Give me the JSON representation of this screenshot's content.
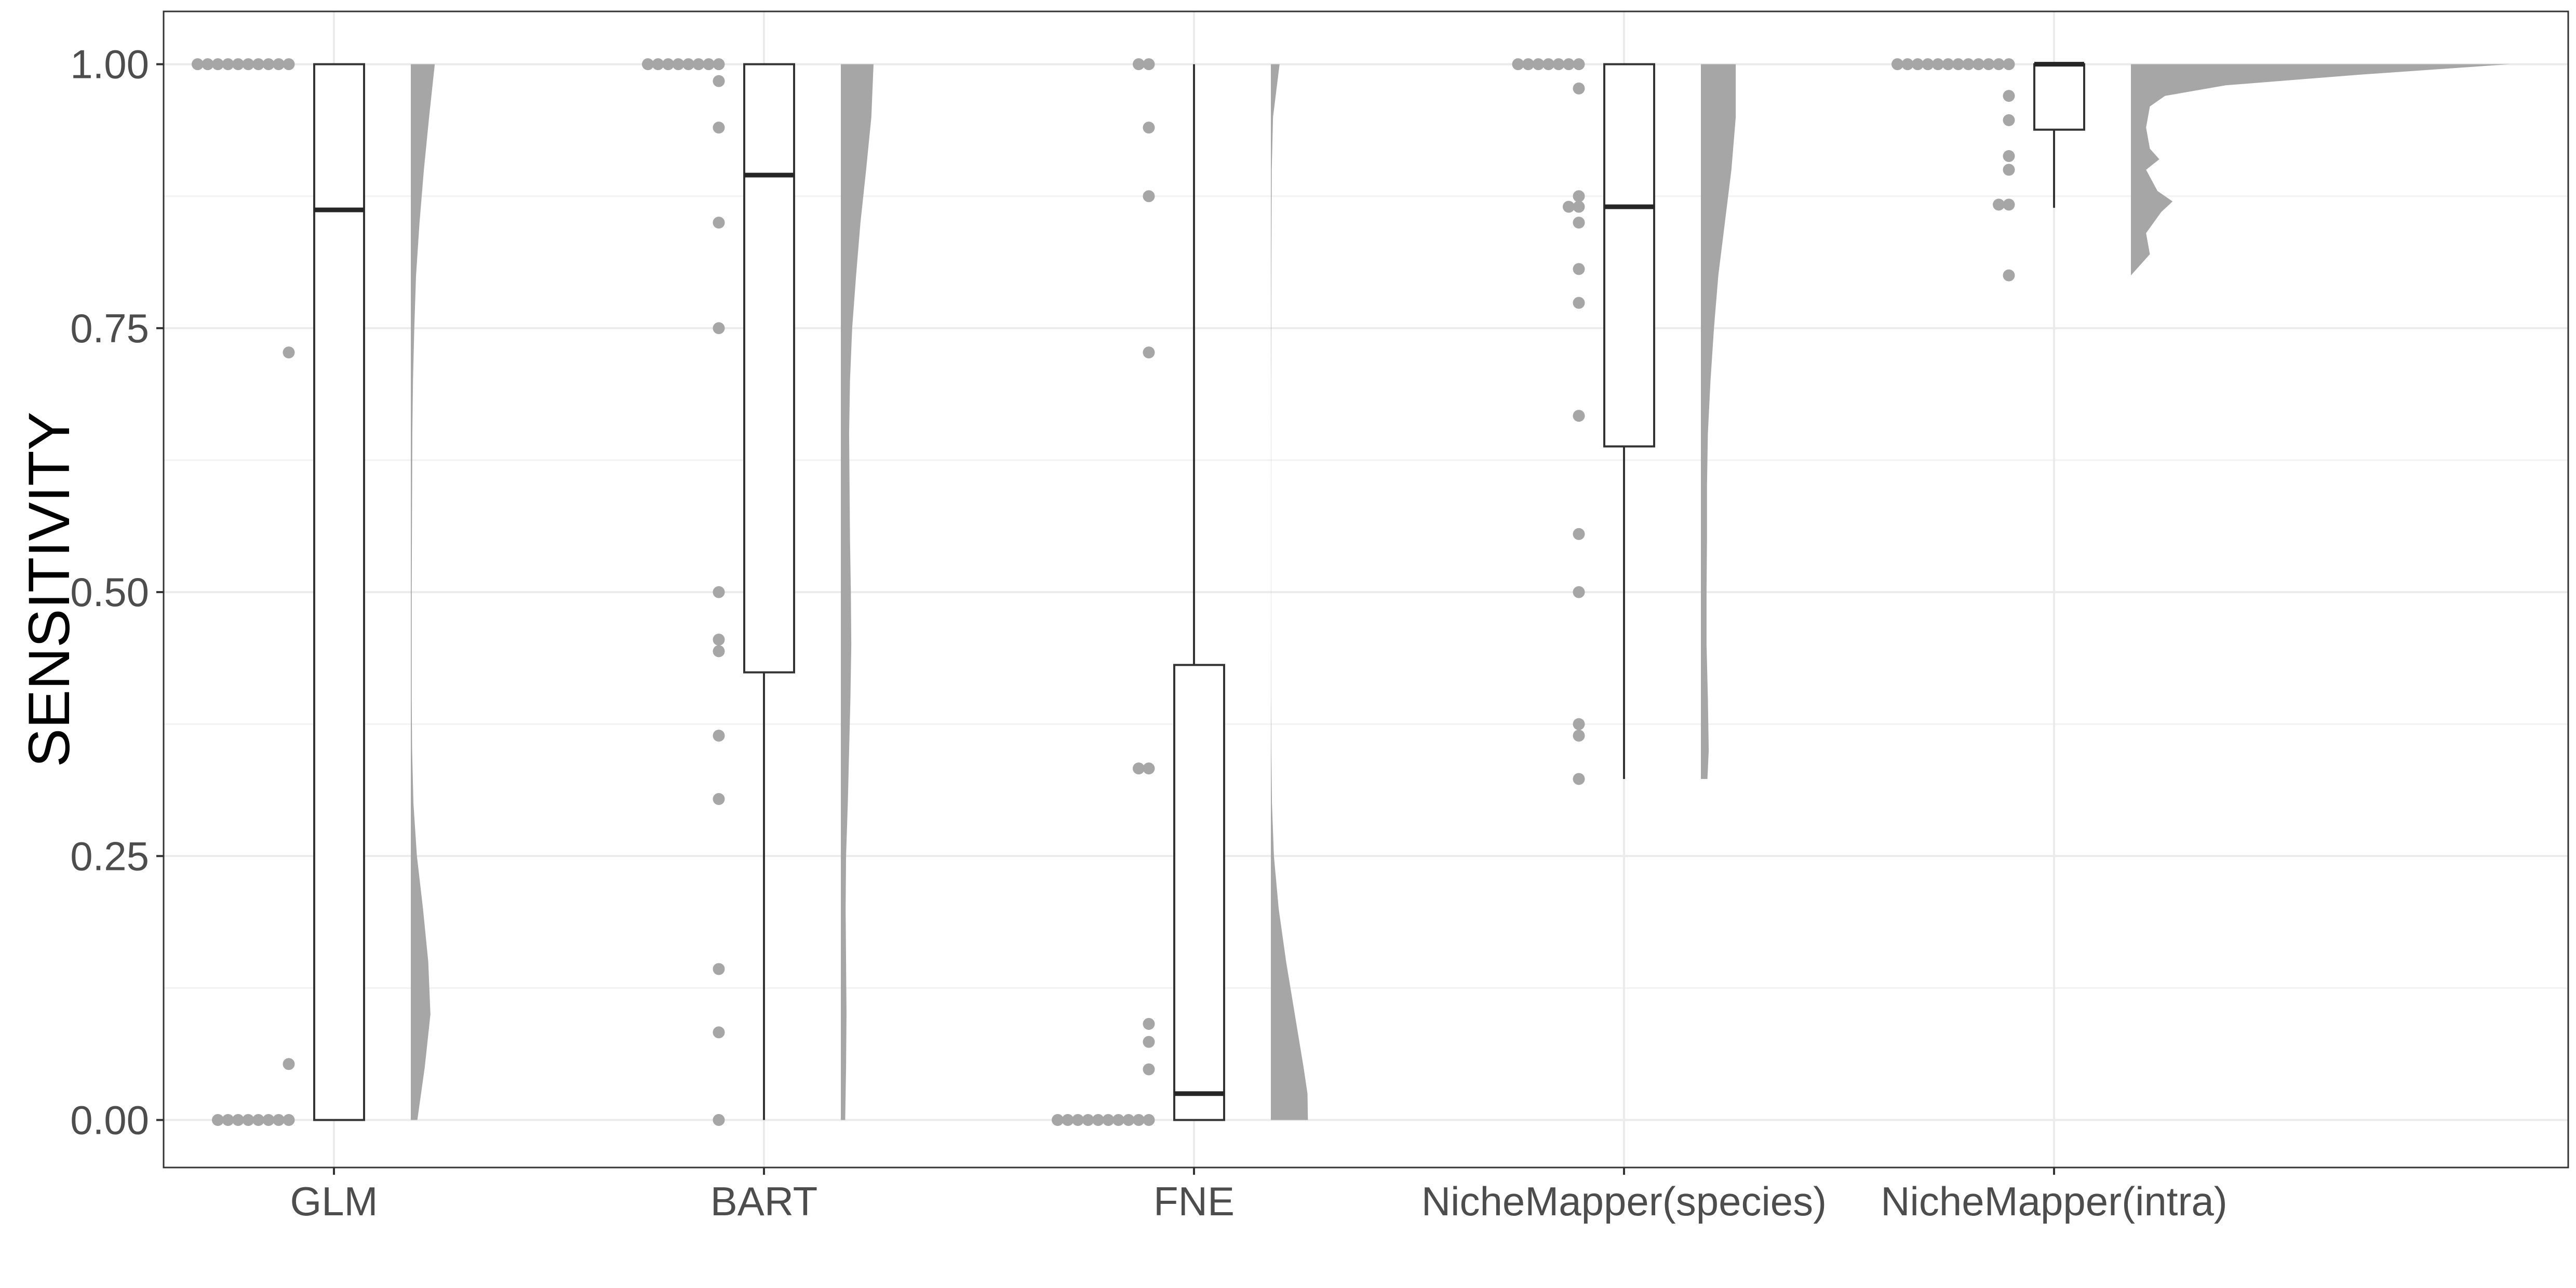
{
  "chart_data": {
    "type": "raincloud",
    "title": "",
    "xlabel": "",
    "ylabel": "SENSITIVITY",
    "ylim": [
      -0.045,
      1.05
    ],
    "y_ticks": [
      0.0,
      0.25,
      0.5,
      0.75,
      1.0
    ],
    "y_tick_labels": [
      "0.00",
      "0.25",
      "0.50",
      "0.75",
      "1.00"
    ],
    "grid": true,
    "legend": "none",
    "categories": [
      "GLM",
      "BART",
      "FNE",
      "NicheMapper(species)",
      "NicheMapper(intra)"
    ],
    "colors": {
      "points": "#a6a6a6",
      "density": "#a6a6a6",
      "box_line": "#333333",
      "median": "#262626",
      "grid": "#ebebeb",
      "panel_border": "#333333"
    },
    "series": [
      {
        "category": "GLM",
        "box": {
          "whisker_low": 0.0,
          "q1": 0.0,
          "median": 0.862,
          "q3": 1.0,
          "whisker_high": 1.0
        },
        "points": [
          1,
          1,
          1,
          1,
          1,
          1,
          1,
          1,
          1,
          1,
          0.727,
          0.053,
          0,
          0,
          0,
          0,
          0,
          0,
          0,
          0
        ],
        "density": [
          [
            0,
            0.15
          ],
          [
            0.05,
            0.32
          ],
          [
            0.1,
            0.45
          ],
          [
            0.15,
            0.4
          ],
          [
            0.2,
            0.28
          ],
          [
            0.25,
            0.14
          ],
          [
            0.3,
            0.06
          ],
          [
            0.35,
            0.03
          ],
          [
            0.4,
            0.02
          ],
          [
            0.45,
            0.02
          ],
          [
            0.5,
            0.02
          ],
          [
            0.55,
            0.025
          ],
          [
            0.6,
            0.03
          ],
          [
            0.65,
            0.035
          ],
          [
            0.7,
            0.05
          ],
          [
            0.75,
            0.08
          ],
          [
            0.8,
            0.12
          ],
          [
            0.85,
            0.2
          ],
          [
            0.9,
            0.3
          ],
          [
            0.95,
            0.42
          ],
          [
            1,
            0.55
          ]
        ]
      },
      {
        "category": "BART",
        "box": {
          "whisker_low": 0.0,
          "q1": 0.424,
          "median": 0.895,
          "q3": 1.0,
          "whisker_high": 1.0
        },
        "points": [
          1,
          1,
          1,
          1,
          1,
          1,
          1,
          1,
          0.984,
          0.94,
          0.85,
          0.75,
          0.5,
          0.455,
          0.444,
          0.364,
          0.304,
          0.143,
          0.083,
          0
        ],
        "density": [
          [
            0,
            0.1
          ],
          [
            0.05,
            0.12
          ],
          [
            0.1,
            0.13
          ],
          [
            0.15,
            0.12
          ],
          [
            0.2,
            0.11
          ],
          [
            0.25,
            0.12
          ],
          [
            0.3,
            0.16
          ],
          [
            0.35,
            0.19
          ],
          [
            0.4,
            0.22
          ],
          [
            0.45,
            0.24
          ],
          [
            0.5,
            0.23
          ],
          [
            0.55,
            0.21
          ],
          [
            0.6,
            0.2
          ],
          [
            0.65,
            0.19
          ],
          [
            0.7,
            0.21
          ],
          [
            0.75,
            0.26
          ],
          [
            0.8,
            0.35
          ],
          [
            0.85,
            0.45
          ],
          [
            0.9,
            0.58
          ],
          [
            0.95,
            0.7
          ],
          [
            1,
            0.75
          ]
        ]
      },
      {
        "category": "FNE",
        "box": {
          "whisker_low": 0.0,
          "q1": 0.0,
          "median": 0.025,
          "q3": 0.431,
          "whisker_high": 1.0
        },
        "points": [
          1,
          1,
          0.94,
          0.875,
          0.727,
          0.333,
          0.333,
          0.091,
          0.074,
          0.048,
          0,
          0,
          0,
          0,
          0,
          0,
          0,
          0,
          0,
          0
        ],
        "density": [
          [
            0,
            0.85
          ],
          [
            0.025,
            0.84
          ],
          [
            0.05,
            0.75
          ],
          [
            0.1,
            0.55
          ],
          [
            0.15,
            0.35
          ],
          [
            0.2,
            0.18
          ],
          [
            0.25,
            0.07
          ],
          [
            0.3,
            0.025
          ],
          [
            0.35,
            0.01
          ],
          [
            0.4,
            0.005
          ],
          [
            0.5,
            0.003
          ],
          [
            0.6,
            0.003
          ],
          [
            0.7,
            0.005
          ],
          [
            0.8,
            0.01
          ],
          [
            0.9,
            0.02
          ],
          [
            0.95,
            0.05
          ],
          [
            1,
            0.2
          ]
        ]
      },
      {
        "category": "NicheMapper(species)",
        "box": {
          "whisker_low": 0.323,
          "q1": 0.638,
          "median": 0.865,
          "q3": 1.0,
          "whisker_high": 1.0
        },
        "points": [
          1,
          1,
          1,
          1,
          1,
          1,
          1,
          0.977,
          0.875,
          0.865,
          0.865,
          0.85,
          0.806,
          0.774,
          0.667,
          0.555,
          0.5,
          0.375,
          0.364,
          0.323
        ],
        "density": [
          [
            0.323,
            0.15
          ],
          [
            0.35,
            0.18
          ],
          [
            0.4,
            0.16
          ],
          [
            0.45,
            0.13
          ],
          [
            0.5,
            0.13
          ],
          [
            0.55,
            0.14
          ],
          [
            0.6,
            0.14
          ],
          [
            0.65,
            0.16
          ],
          [
            0.7,
            0.22
          ],
          [
            0.75,
            0.3
          ],
          [
            0.8,
            0.4
          ],
          [
            0.85,
            0.55
          ],
          [
            0.9,
            0.7
          ],
          [
            0.95,
            0.8
          ],
          [
            1,
            0.8
          ]
        ]
      },
      {
        "category": "NicheMapper(intra)",
        "box": {
          "whisker_low": 0.864,
          "q1": 0.938,
          "median": 1.0,
          "q3": 1.0,
          "whisker_high": 1.0
        },
        "points": [
          1,
          1,
          1,
          1,
          1,
          1,
          1,
          1,
          1,
          1,
          1,
          1,
          0.97,
          0.947,
          0.913,
          0.9,
          0.867,
          0.867,
          0.8
        ],
        "density": [
          [
            0.8,
            0.0
          ],
          [
            0.82,
            0.05
          ],
          [
            0.84,
            0.04
          ],
          [
            0.86,
            0.08
          ],
          [
            0.87,
            0.11
          ],
          [
            0.88,
            0.07
          ],
          [
            0.9,
            0.04
          ],
          [
            0.91,
            0.075
          ],
          [
            0.92,
            0.05
          ],
          [
            0.94,
            0.04
          ],
          [
            0.96,
            0.05
          ],
          [
            0.97,
            0.09
          ],
          [
            0.98,
            0.25
          ],
          [
            0.99,
            0.6
          ],
          [
            1,
            1.0
          ]
        ]
      }
    ]
  }
}
